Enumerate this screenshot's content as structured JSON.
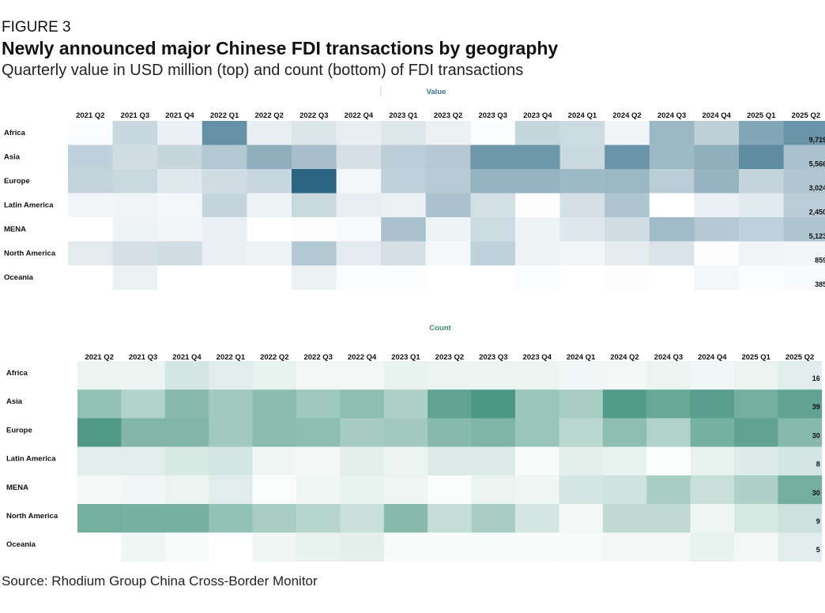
{
  "figure_label": "FIGURE 3",
  "title": "Newly announced major Chinese FDI transactions by geography",
  "subtitle": "Quarterly value in USD million (top) and count (bottom) of FDI transactions",
  "source": "Source: Rhodium Group China Cross-Border Monitor",
  "colors": {
    "value_scale": "#2a6682",
    "count_scale": "#3d8f7a",
    "value_title": "#3b7190",
    "count_title": "#3d8a72"
  },
  "chart_data": [
    {
      "type": "heatmap",
      "title": "Value",
      "categories": [
        "2021 Q2",
        "2021 Q3",
        "2021 Q4",
        "2022 Q1",
        "2022 Q2",
        "2022 Q3",
        "2022 Q4",
        "2023 Q1",
        "2023 Q2",
        "2023 Q3",
        "2023 Q4",
        "2024 Q1",
        "2024 Q2",
        "2024 Q3",
        "2024 Q4",
        "2025 Q1",
        "2025 Q2"
      ],
      "rows": [
        "Africa",
        "Asia",
        "Europe",
        "Latin America",
        "MENA",
        "North America",
        "Oceania"
      ],
      "totals": [
        "9,719",
        "5,566",
        "3,024",
        "2,450",
        "5,123",
        "859",
        "385"
      ],
      "intensity": [
        [
          0.02,
          0.26,
          0.1,
          0.72,
          0.11,
          0.17,
          0.11,
          0.16,
          0.09,
          0.02,
          0.27,
          0.24,
          0.07,
          0.47,
          0.31,
          0.58,
          0.7
        ],
        [
          0.3,
          0.22,
          0.27,
          0.36,
          0.52,
          0.42,
          0.2,
          0.32,
          0.35,
          0.68,
          0.68,
          0.25,
          0.7,
          0.45,
          0.52,
          0.75,
          0.4
        ],
        [
          0.28,
          0.25,
          0.15,
          0.22,
          0.26,
          1.0,
          0.05,
          0.3,
          0.34,
          0.5,
          0.5,
          0.45,
          0.47,
          0.32,
          0.5,
          0.28,
          0.37
        ],
        [
          0.06,
          0.07,
          0.05,
          0.28,
          0.08,
          0.25,
          0.11,
          0.09,
          0.4,
          0.21,
          0.01,
          0.2,
          0.38,
          0.0,
          0.1,
          0.14,
          0.32
        ],
        [
          0.0,
          0.08,
          0.06,
          0.1,
          0.0,
          0.01,
          0.03,
          0.4,
          0.08,
          0.24,
          0.08,
          0.16,
          0.22,
          0.44,
          0.35,
          0.3,
          0.38
        ],
        [
          0.13,
          0.2,
          0.22,
          0.1,
          0.08,
          0.36,
          0.13,
          0.2,
          0.04,
          0.3,
          0.08,
          0.06,
          0.12,
          0.18,
          0.01,
          0.07,
          0.06
        ],
        [
          0.0,
          0.09,
          0.0,
          0.0,
          0.0,
          0.09,
          0.02,
          0.02,
          0.0,
          0.0,
          0.02,
          0.0,
          0.01,
          0.0,
          0.05,
          0.02,
          0.03
        ]
      ]
    },
    {
      "type": "heatmap",
      "title": "Count",
      "categories": [
        "2021 Q2",
        "2021 Q3",
        "2021 Q4",
        "2022 Q1",
        "2022 Q2",
        "2022 Q3",
        "2022 Q4",
        "2023 Q1",
        "2023 Q2",
        "2023 Q3",
        "2023 Q4",
        "2024 Q1",
        "2024 Q2",
        "2024 Q3",
        "2024 Q4",
        "2025 Q1",
        "2025 Q2"
      ],
      "rows": [
        "Africa",
        "Asia",
        "Europe",
        "Latin America",
        "MENA",
        "North America",
        "Oceania"
      ],
      "totals": [
        "16",
        "39",
        "30",
        "8",
        "30",
        "9",
        "5"
      ],
      "intensity": [
        [
          0.1,
          0.1,
          0.22,
          0.16,
          0.12,
          0.06,
          0.06,
          0.12,
          0.1,
          0.1,
          0.1,
          0.07,
          0.06,
          0.1,
          0.07,
          0.1,
          0.16
        ],
        [
          0.55,
          0.4,
          0.62,
          0.48,
          0.6,
          0.5,
          0.58,
          0.42,
          0.82,
          0.92,
          0.52,
          0.45,
          0.88,
          0.78,
          0.86,
          0.72,
          0.82
        ],
        [
          0.9,
          0.65,
          0.65,
          0.48,
          0.6,
          0.58,
          0.46,
          0.48,
          0.62,
          0.66,
          0.52,
          0.35,
          0.58,
          0.4,
          0.7,
          0.82,
          0.62
        ],
        [
          0.16,
          0.16,
          0.2,
          0.22,
          0.08,
          0.06,
          0.14,
          0.1,
          0.18,
          0.18,
          0.04,
          0.14,
          0.12,
          0.02,
          0.12,
          0.18,
          0.22
        ],
        [
          0.05,
          0.07,
          0.1,
          0.16,
          0.03,
          0.08,
          0.12,
          0.09,
          0.02,
          0.1,
          0.08,
          0.22,
          0.24,
          0.45,
          0.28,
          0.42,
          0.72
        ],
        [
          0.72,
          0.7,
          0.7,
          0.55,
          0.45,
          0.38,
          0.28,
          0.62,
          0.3,
          0.45,
          0.22,
          0.06,
          0.32,
          0.32,
          0.08,
          0.2,
          0.26
        ],
        [
          0.0,
          0.08,
          0.04,
          0.0,
          0.08,
          0.12,
          0.14,
          0.04,
          0.04,
          0.04,
          0.04,
          0.04,
          0.06,
          0.06,
          0.12,
          0.06,
          0.16
        ]
      ]
    }
  ]
}
